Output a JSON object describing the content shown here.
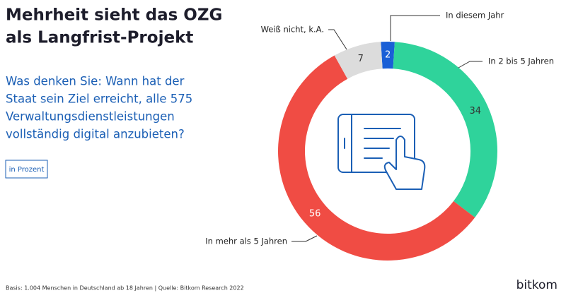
{
  "chart_data": {
    "type": "donut",
    "title": [
      "Mehrheit sieht das OZG",
      "als Langfrist-Projekt"
    ],
    "subtitle": [
      "Was denken Sie: Wann hat der",
      "Staat sein Ziel erreicht, alle 575",
      "Verwaltungsdienstleistungen",
      "vollständig digital anzubieten?"
    ],
    "unit_label": "in Prozent",
    "categories": [
      "In diesem Jahr",
      "In 2 bis 5 Jahren",
      "In mehr als 5 Jahren",
      "Weiß nicht, k.A."
    ],
    "values": [
      2,
      34,
      56,
      7
    ],
    "colors": [
      "#1a5fd6",
      "#2fd39b",
      "#f04c44",
      "#dcdcdc"
    ],
    "source": "Basis: 1.004 Menschen in Deutschland ab 18 Jahren | Quelle: Bitkom Research 2022",
    "brand": "bitkom"
  }
}
